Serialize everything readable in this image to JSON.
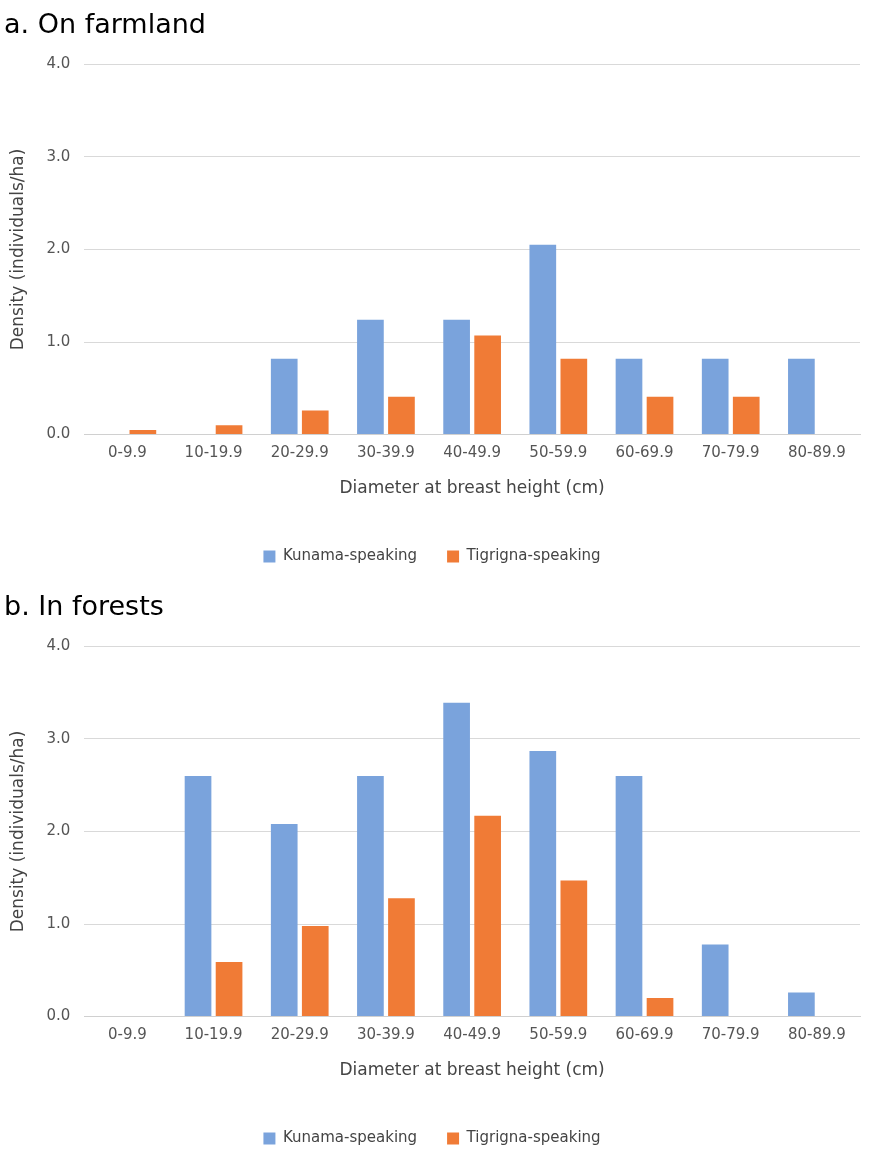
{
  "chart_data": [
    {
      "type": "bar",
      "title": "a. On farmland",
      "xlabel": "Diameter at breast height (cm)",
      "ylabel": "Density (individuals/ha)",
      "categories": [
        "0-9.9",
        "10-19.9",
        "20-29.9",
        "30-39.9",
        "40-49.9",
        "50-59.9",
        "60-69.9",
        "70-79.9",
        "80-89.9"
      ],
      "series": [
        {
          "name": "Kunama-speaking",
          "color": "#7aa3dc",
          "values": [
            0,
            0,
            0.82,
            1.24,
            1.24,
            2.05,
            0.82,
            0.82,
            0.82
          ]
        },
        {
          "name": "Tigrigna-speaking",
          "color": "#f07b36",
          "values": [
            0.05,
            0.1,
            0.26,
            0.41,
            1.07,
            0.82,
            0.41,
            0.41,
            0
          ]
        }
      ],
      "ylim": [
        0,
        4
      ],
      "yticks": [
        {
          "value": 0,
          "label": "0.0"
        },
        {
          "value": 1,
          "label": "1.0"
        },
        {
          "value": 2,
          "label": "2.0"
        },
        {
          "value": 3,
          "label": "3.0"
        },
        {
          "value": 4,
          "label": "4.0"
        }
      ],
      "grid": "y",
      "legend": "bottom"
    },
    {
      "type": "bar",
      "title": "b. In forests",
      "xlabel": "Diameter at breast height (cm)",
      "ylabel": "Density (individuals/ha)",
      "categories": [
        "0-9.9",
        "10-19.9",
        "20-29.9",
        "30-39.9",
        "40-49.9",
        "50-59.9",
        "60-69.9",
        "70-79.9",
        "80-89.9"
      ],
      "series": [
        {
          "name": "Kunama-speaking",
          "color": "#7aa3dc",
          "values": [
            0,
            2.6,
            2.08,
            2.6,
            3.39,
            2.87,
            2.6,
            0.78,
            0.26
          ]
        },
        {
          "name": "Tigrigna-speaking",
          "color": "#f07b36",
          "values": [
            0,
            0.59,
            0.98,
            1.28,
            2.17,
            1.47,
            0.2,
            0,
            0
          ]
        }
      ],
      "ylim": [
        0,
        4
      ],
      "yticks": [
        {
          "value": 0,
          "label": "0.0"
        },
        {
          "value": 1,
          "label": "1.0"
        },
        {
          "value": 2,
          "label": "2.0"
        },
        {
          "value": 3,
          "label": "3.0"
        },
        {
          "value": 4,
          "label": "4.0"
        }
      ],
      "grid": "y",
      "legend": "bottom"
    }
  ]
}
